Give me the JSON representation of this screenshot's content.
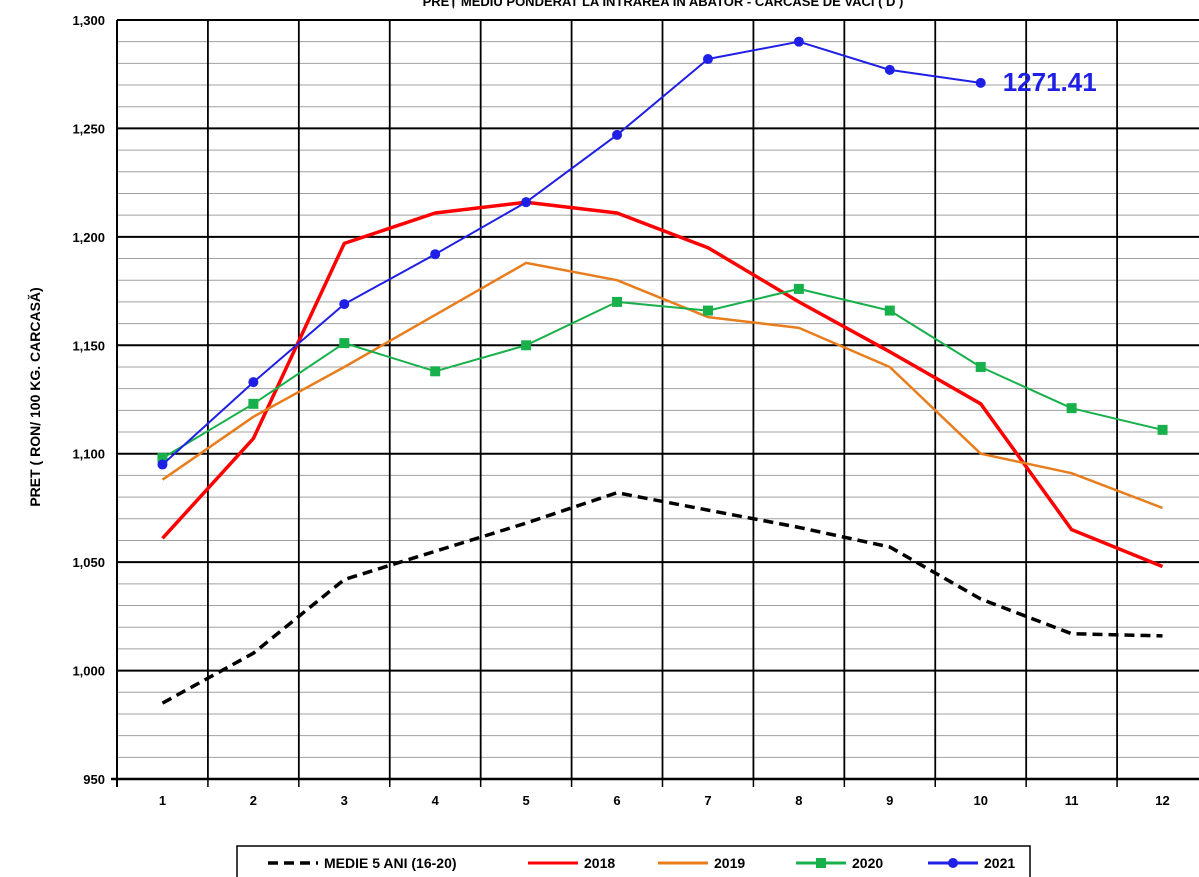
{
  "chart_data": {
    "type": "line",
    "title": "PREȚ MEDIU PONDERAT LA INTRAREA IN ABATOR - CARCASE DE VACI ( D )",
    "xlabel": "",
    "ylabel": "PRET ( RON/ 100 KG. CARCASĂ)",
    "x": [
      1,
      2,
      3,
      4,
      5,
      6,
      7,
      8,
      9,
      10,
      11,
      12
    ],
    "x_tick_labels": [
      "1",
      "2",
      "3",
      "4",
      "5",
      "6",
      "7",
      "8",
      "9",
      "10",
      "11",
      "12"
    ],
    "ylim": [
      950,
      1300
    ],
    "y_tick_values": [
      950,
      1000,
      1050,
      1100,
      1150,
      1200,
      1250,
      1300
    ],
    "y_tick_labels": [
      "950",
      "1,000",
      "1,050",
      "1,100",
      "1,150",
      "1,200",
      "1,250",
      "1,300"
    ],
    "grid": true,
    "legend_position": "bottom",
    "series": [
      {
        "name": "MEDIE 5 ANI (16-20)",
        "color": "#000000",
        "dash": true,
        "marker": "none",
        "values": [
          985,
          1008,
          1042,
          1055,
          1068,
          1082,
          1074,
          1066,
          1057,
          1033,
          1017,
          1016
        ]
      },
      {
        "name": "2018",
        "color": "#ff0000",
        "dash": false,
        "marker": "none",
        "values": [
          1061,
          1107,
          1197,
          1211,
          1216,
          1211,
          1195,
          1170,
          1147,
          1123,
          1065,
          1048
        ]
      },
      {
        "name": "2019",
        "color": "#e87d1e",
        "dash": false,
        "marker": "none",
        "values": [
          1088,
          1117,
          1140,
          1164,
          1188,
          1180,
          1163,
          1158,
          1140,
          1100,
          1091,
          1075
        ]
      },
      {
        "name": "2020",
        "color": "#18b04b",
        "dash": false,
        "marker": "square",
        "values": [
          1098,
          1123,
          1151,
          1138,
          1150,
          1170,
          1166,
          1176,
          1166,
          1140,
          1121,
          1111
        ]
      },
      {
        "name": "2021",
        "color": "#1f1fe6",
        "dash": false,
        "marker": "circle",
        "values": [
          1095,
          1133,
          1169,
          1192,
          1216,
          1247,
          1282,
          1290,
          1277,
          1271,
          null,
          null
        ]
      }
    ],
    "annotations": [
      {
        "text": "1271.41",
        "x": 10,
        "y": 1271.41,
        "color": "#1f1fe6"
      }
    ]
  }
}
